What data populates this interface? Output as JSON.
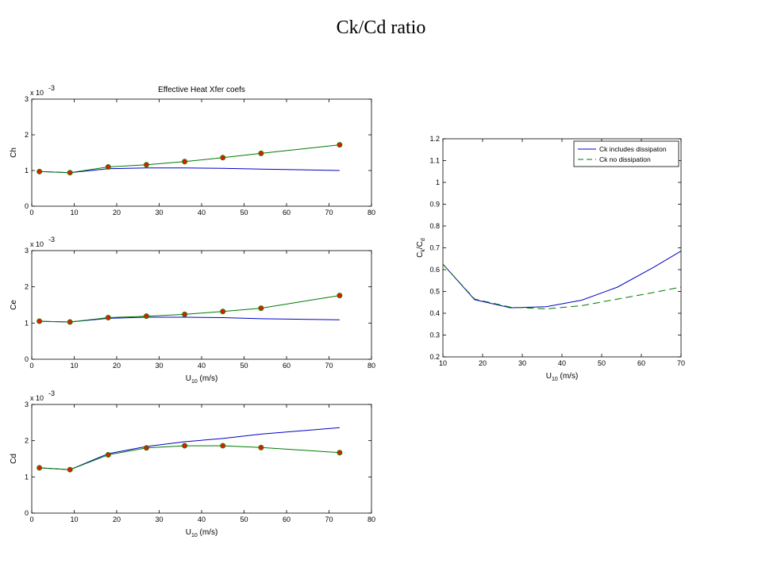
{
  "page_title": "Ck/Cd ratio",
  "colors": {
    "blue": "#0000c8",
    "green": "#007a00",
    "marker_fill": "#e01a00",
    "marker_edge": "#2d7a00"
  },
  "chart_data": [
    {
      "id": "ch",
      "type": "line",
      "title": "Effective Heat Xfer coefs",
      "xlabel": "",
      "ylabel": "Ch",
      "exponent_label": "x 10",
      "exponent_power": "-3",
      "xlim": [
        0,
        80
      ],
      "ylim": [
        0,
        3
      ],
      "xticks": [
        0,
        10,
        20,
        30,
        40,
        50,
        60,
        70,
        80
      ],
      "yticks": [
        0,
        1,
        2,
        3
      ],
      "series": [
        {
          "color": "blue",
          "markers": false,
          "x": [
            1.8,
            9,
            18,
            27,
            36,
            45,
            54,
            72.5
          ],
          "y": [
            0.97,
            0.94,
            1.05,
            1.07,
            1.07,
            1.06,
            1.04,
            1.0
          ]
        },
        {
          "color": "green",
          "markers": true,
          "x": [
            1.8,
            9,
            18,
            27,
            36,
            45,
            54,
            72.5
          ],
          "y": [
            0.97,
            0.94,
            1.1,
            1.16,
            1.25,
            1.36,
            1.48,
            1.72
          ]
        }
      ]
    },
    {
      "id": "ce",
      "type": "line",
      "title": "",
      "xlabel": "U",
      "xlabel_sub": "10",
      "xlabel_unit": " (m/s)",
      "ylabel": "Ce",
      "exponent_label": "x 10",
      "exponent_power": "-3",
      "xlim": [
        0,
        80
      ],
      "ylim": [
        0,
        3
      ],
      "xticks": [
        0,
        10,
        20,
        30,
        40,
        50,
        60,
        70,
        80
      ],
      "yticks": [
        0,
        1,
        2,
        3
      ],
      "series": [
        {
          "color": "blue",
          "markers": false,
          "x": [
            1.8,
            9,
            18,
            27,
            36,
            45,
            54,
            72.5
          ],
          "y": [
            1.05,
            1.03,
            1.13,
            1.16,
            1.16,
            1.15,
            1.12,
            1.09
          ]
        },
        {
          "color": "green",
          "markers": true,
          "x": [
            1.8,
            9,
            18,
            27,
            36,
            45,
            54,
            72.5
          ],
          "y": [
            1.05,
            1.03,
            1.15,
            1.19,
            1.24,
            1.32,
            1.41,
            1.76
          ]
        }
      ]
    },
    {
      "id": "cd",
      "type": "line",
      "title": "",
      "xlabel": "U",
      "xlabel_sub": "10",
      "xlabel_unit": " (m/s)",
      "ylabel": "Cd",
      "exponent_label": "x 10",
      "exponent_power": "-3",
      "xlim": [
        0,
        80
      ],
      "ylim": [
        0,
        3
      ],
      "xticks": [
        0,
        10,
        20,
        30,
        40,
        50,
        60,
        70,
        80
      ],
      "yticks": [
        0,
        1,
        2,
        3
      ],
      "series": [
        {
          "color": "blue",
          "markers": false,
          "x": [
            1.8,
            9,
            18,
            27,
            36,
            45,
            54,
            72.5
          ],
          "y": [
            1.25,
            1.2,
            1.64,
            1.84,
            1.97,
            2.06,
            2.18,
            2.36
          ]
        },
        {
          "color": "green",
          "markers": true,
          "x": [
            1.8,
            9,
            18,
            27,
            36,
            45,
            54,
            72.5
          ],
          "y": [
            1.25,
            1.2,
            1.61,
            1.8,
            1.86,
            1.86,
            1.81,
            1.67
          ]
        }
      ]
    },
    {
      "id": "ratio",
      "type": "line",
      "title": "",
      "xlabel": "U",
      "xlabel_sub": "10",
      "xlabel_unit": " (m/s)",
      "ylabel": "C",
      "ylabel_sub": "k",
      "ylabel_mid": "/C",
      "ylabel_sub2": "d",
      "xlim": [
        10,
        70
      ],
      "ylim": [
        0.2,
        1.2
      ],
      "xticks": [
        10,
        20,
        30,
        40,
        50,
        60,
        70
      ],
      "yticks": [
        0.2,
        0.3,
        0.4,
        0.5,
        0.6,
        0.7,
        0.8,
        0.9,
        1,
        1.1,
        1.2
      ],
      "legend_position": "top-right",
      "series": [
        {
          "name": "Ck includes dissipaton",
          "color": "blue",
          "dash": false,
          "x": [
            10,
            18,
            27,
            36,
            45,
            54,
            63,
            70
          ],
          "y": [
            0.625,
            0.462,
            0.425,
            0.43,
            0.46,
            0.52,
            0.61,
            0.685
          ]
        },
        {
          "name": "Ck no dissipation",
          "color": "green",
          "dash": true,
          "x": [
            10,
            18,
            27,
            36,
            45,
            54,
            63,
            70
          ],
          "y": [
            0.625,
            0.465,
            0.428,
            0.42,
            0.435,
            0.465,
            0.495,
            0.52
          ]
        }
      ]
    }
  ]
}
